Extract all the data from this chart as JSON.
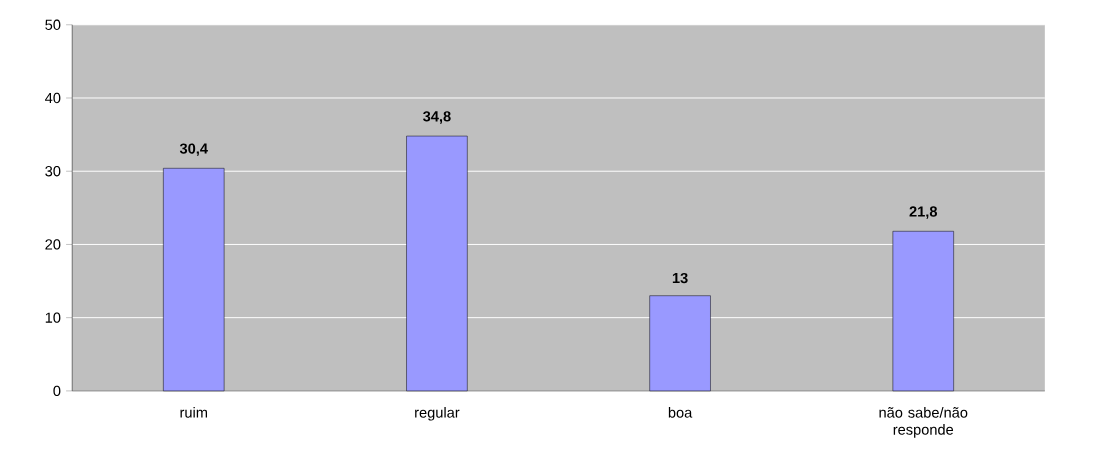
{
  "chart_data": {
    "type": "bar",
    "categories": [
      "ruim",
      "regular",
      "boa",
      "não sabe/não responde"
    ],
    "values": [
      30.4,
      34.8,
      13,
      21.8
    ],
    "value_labels": [
      "30,4",
      "34,8",
      "13",
      "21,8"
    ],
    "color": "#9999ff",
    "ylim": [
      0,
      50
    ],
    "yticks": [
      0,
      10,
      20,
      30,
      40,
      50
    ],
    "grid": "y"
  }
}
